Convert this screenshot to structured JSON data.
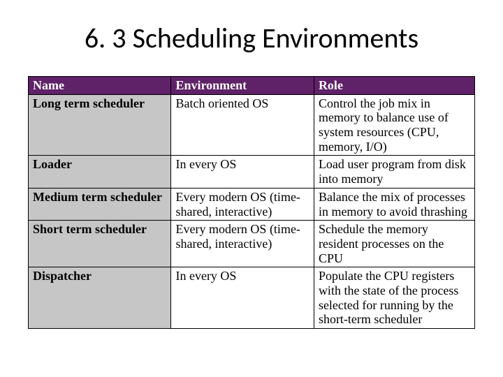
{
  "title": "6. 3 Scheduling Environments",
  "table": {
    "columns": [
      "Name",
      "Environment",
      "Role"
    ],
    "column_widths_pct": [
      32,
      32,
      36
    ],
    "header_bg": "#5f2167",
    "header_fg": "#ffffff",
    "name_col_bg": "#c6c6c6",
    "body_bg": "#ffffff",
    "border_color": "#000000",
    "body_fontsize_pt": 14,
    "header_fontsize_pt": 14,
    "rows": [
      {
        "name": "Long term scheduler",
        "environment": "Batch oriented OS",
        "role": "Control the job mix in memory to balance use of system resources (CPU, memory, I/O)"
      },
      {
        "name": "Loader",
        "environment": "In every OS",
        "role": "Load user program from disk into memory"
      },
      {
        "name": "Medium term scheduler",
        "environment": "Every modern OS (time-shared, interactive)",
        "role": "Balance the mix of processes in memory to avoid thrashing"
      },
      {
        "name": "Short term scheduler",
        "environment": "Every modern OS (time-shared, interactive)",
        "role": "Schedule the memory resident processes on the CPU"
      },
      {
        "name": "Dispatcher",
        "environment": "In every OS",
        "role": "Populate the CPU registers with the state of the process selected for running by the short-term scheduler"
      }
    ]
  },
  "title_font": {
    "family": "Calibri",
    "size_pt": 30,
    "weight": "normal",
    "color": "#000000"
  },
  "background_color": "#ffffff"
}
